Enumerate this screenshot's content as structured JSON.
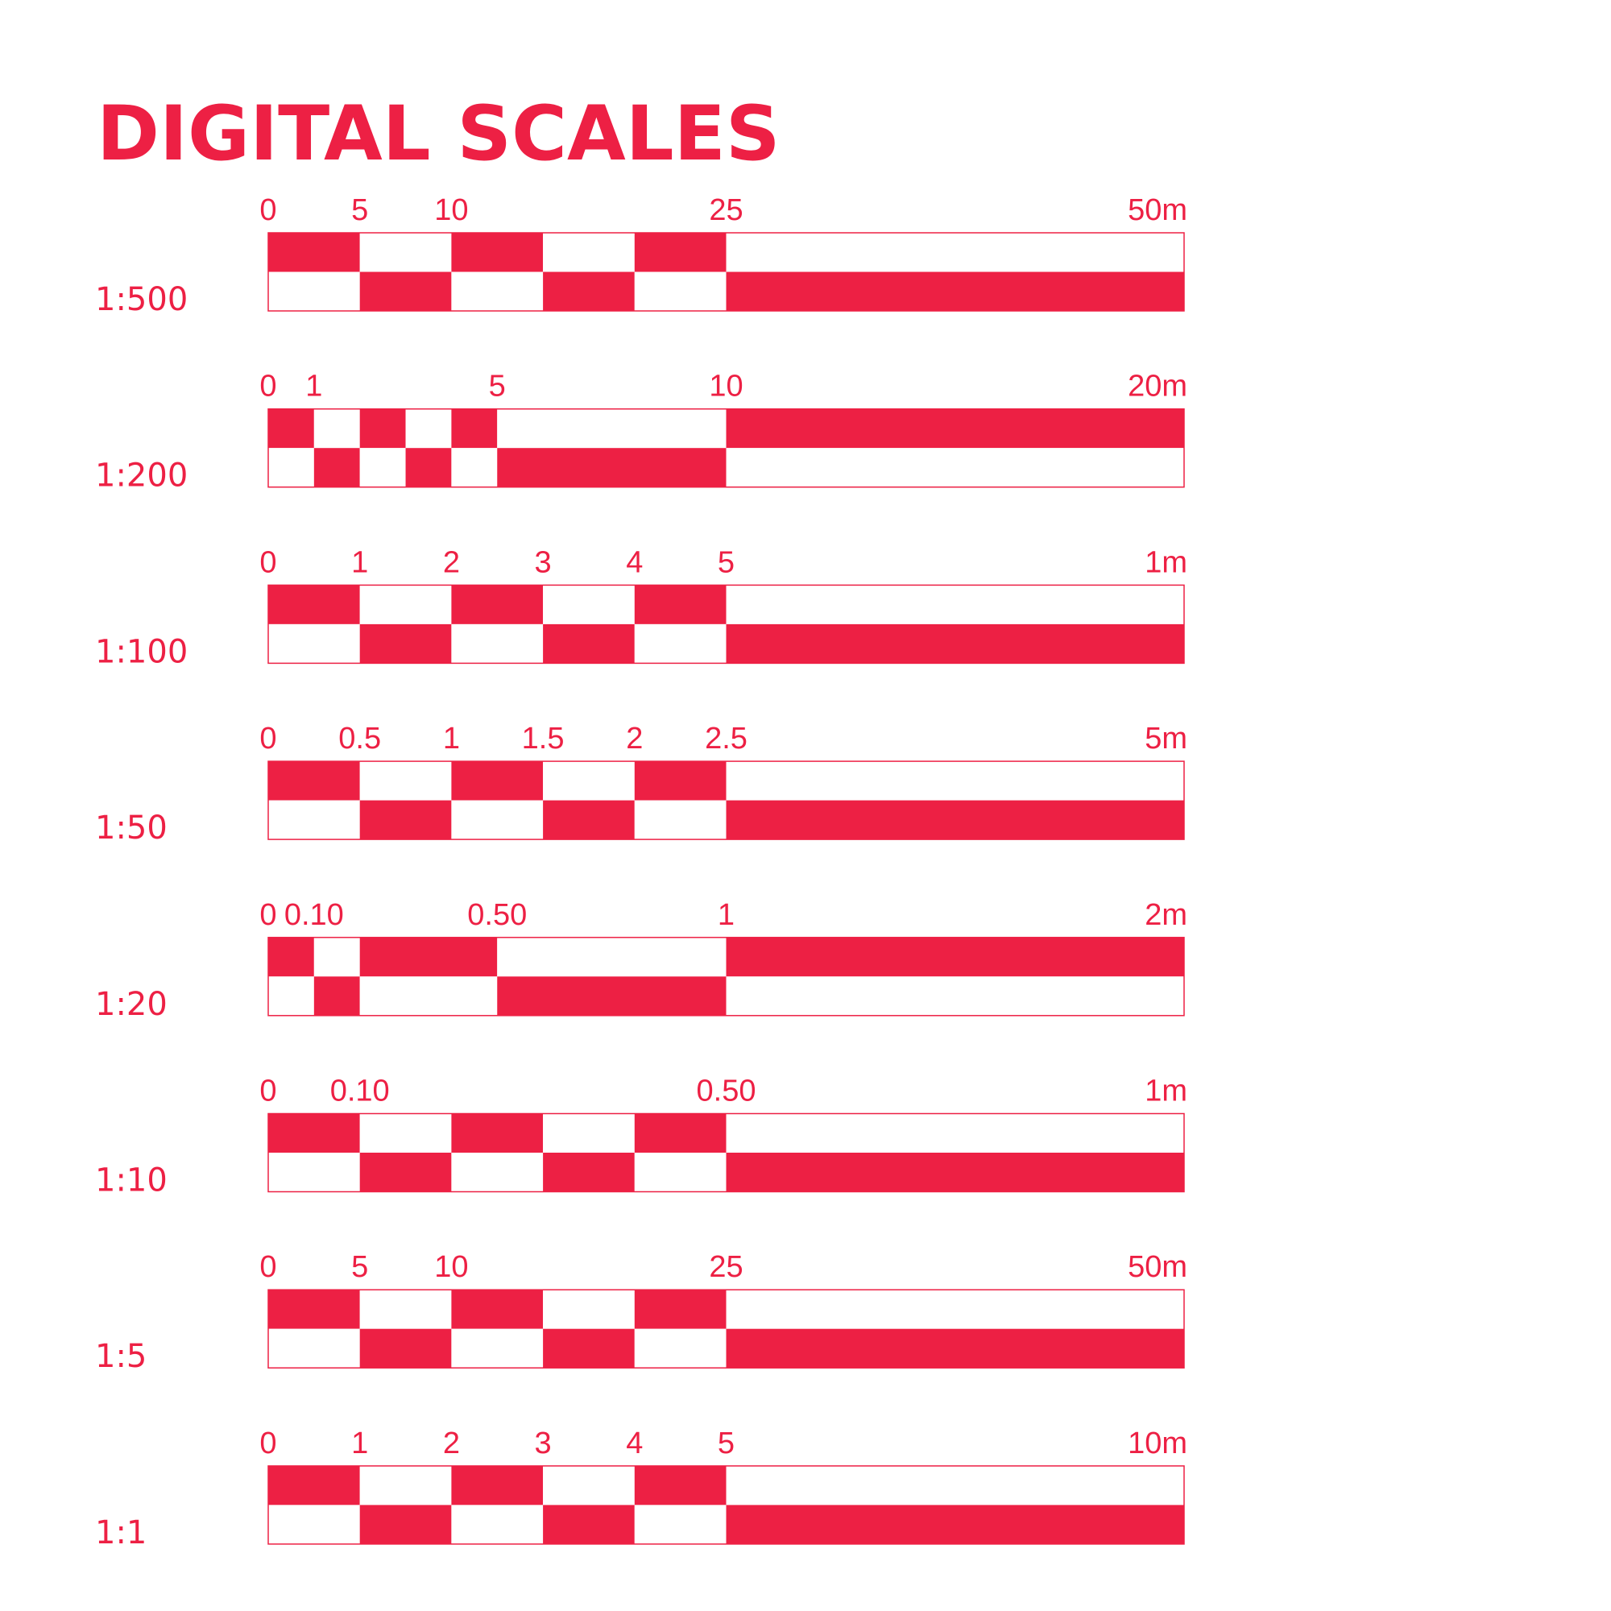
{
  "title": "DIGITAL SCALES",
  "colors": {
    "accent": "#ED2044",
    "background": "#FFFFFF"
  },
  "scales": [
    {
      "ratio": "1:500",
      "ticks": [
        {
          "label": "0",
          "pos": 0
        },
        {
          "label": "5",
          "pos": 5
        },
        {
          "label": "10",
          "pos": 10
        },
        {
          "label": "25",
          "pos": 25
        },
        {
          "label": "50m",
          "pos": 50
        }
      ],
      "divisions": [
        0,
        5,
        10,
        15,
        20,
        25,
        50
      ],
      "total": 50
    },
    {
      "ratio": "1:200",
      "ticks": [
        {
          "label": "0",
          "pos": 0
        },
        {
          "label": "1",
          "pos": 1
        },
        {
          "label": "5",
          "pos": 5
        },
        {
          "label": "10",
          "pos": 10
        },
        {
          "label": "20m",
          "pos": 20
        }
      ],
      "divisions": [
        0,
        1,
        2,
        3,
        4,
        5,
        10,
        20
      ],
      "total": 20
    },
    {
      "ratio": "1:100",
      "ticks": [
        {
          "label": "0",
          "pos": 0
        },
        {
          "label": "1",
          "pos": 0.1
        },
        {
          "label": "2",
          "pos": 0.2
        },
        {
          "label": "3",
          "pos": 0.3
        },
        {
          "label": "4",
          "pos": 0.4
        },
        {
          "label": "5",
          "pos": 0.5
        },
        {
          "label": "1m",
          "pos": 1
        }
      ],
      "divisions": [
        0,
        0.1,
        0.2,
        0.3,
        0.4,
        0.5,
        1
      ],
      "total": 1
    },
    {
      "ratio": "1:50",
      "ticks": [
        {
          "label": "0",
          "pos": 0
        },
        {
          "label": "0.5",
          "pos": 0.5
        },
        {
          "label": "1",
          "pos": 1
        },
        {
          "label": "1.5",
          "pos": 1.5
        },
        {
          "label": "2",
          "pos": 2
        },
        {
          "label": "2.5",
          "pos": 2.5
        },
        {
          "label": "5m",
          "pos": 5
        }
      ],
      "divisions": [
        0,
        0.5,
        1,
        1.5,
        2,
        2.5,
        5
      ],
      "total": 5
    },
    {
      "ratio": "1:20",
      "ticks": [
        {
          "label": "0",
          "pos": 0
        },
        {
          "label": "0.10",
          "pos": 0.1
        },
        {
          "label": "0.50",
          "pos": 0.5
        },
        {
          "label": "1",
          "pos": 1
        },
        {
          "label": "2m",
          "pos": 2
        }
      ],
      "divisions": [
        0,
        0.1,
        0.2,
        0.5,
        1,
        2
      ],
      "total": 2
    },
    {
      "ratio": "1:10",
      "ticks": [
        {
          "label": "0",
          "pos": 0
        },
        {
          "label": "0.10",
          "pos": 0.1
        },
        {
          "label": "0.50",
          "pos": 0.5
        },
        {
          "label": "1m",
          "pos": 1
        }
      ],
      "divisions": [
        0,
        0.1,
        0.2,
        0.3,
        0.4,
        0.5,
        1
      ],
      "total": 1
    },
    {
      "ratio": "1:5",
      "ticks": [
        {
          "label": "0",
          "pos": 0
        },
        {
          "label": "5",
          "pos": 5
        },
        {
          "label": "10",
          "pos": 10
        },
        {
          "label": "25",
          "pos": 25
        },
        {
          "label": "50m",
          "pos": 50
        }
      ],
      "divisions": [
        0,
        5,
        10,
        15,
        20,
        25,
        50
      ],
      "total": 50
    },
    {
      "ratio": "1:1",
      "ticks": [
        {
          "label": "0",
          "pos": 0
        },
        {
          "label": "1",
          "pos": 1
        },
        {
          "label": "2",
          "pos": 2
        },
        {
          "label": "3",
          "pos": 3
        },
        {
          "label": "4",
          "pos": 4
        },
        {
          "label": "5",
          "pos": 5
        },
        {
          "label": "10m",
          "pos": 10
        }
      ],
      "divisions": [
        0,
        1,
        2,
        3,
        4,
        5,
        10
      ],
      "total": 10
    }
  ]
}
